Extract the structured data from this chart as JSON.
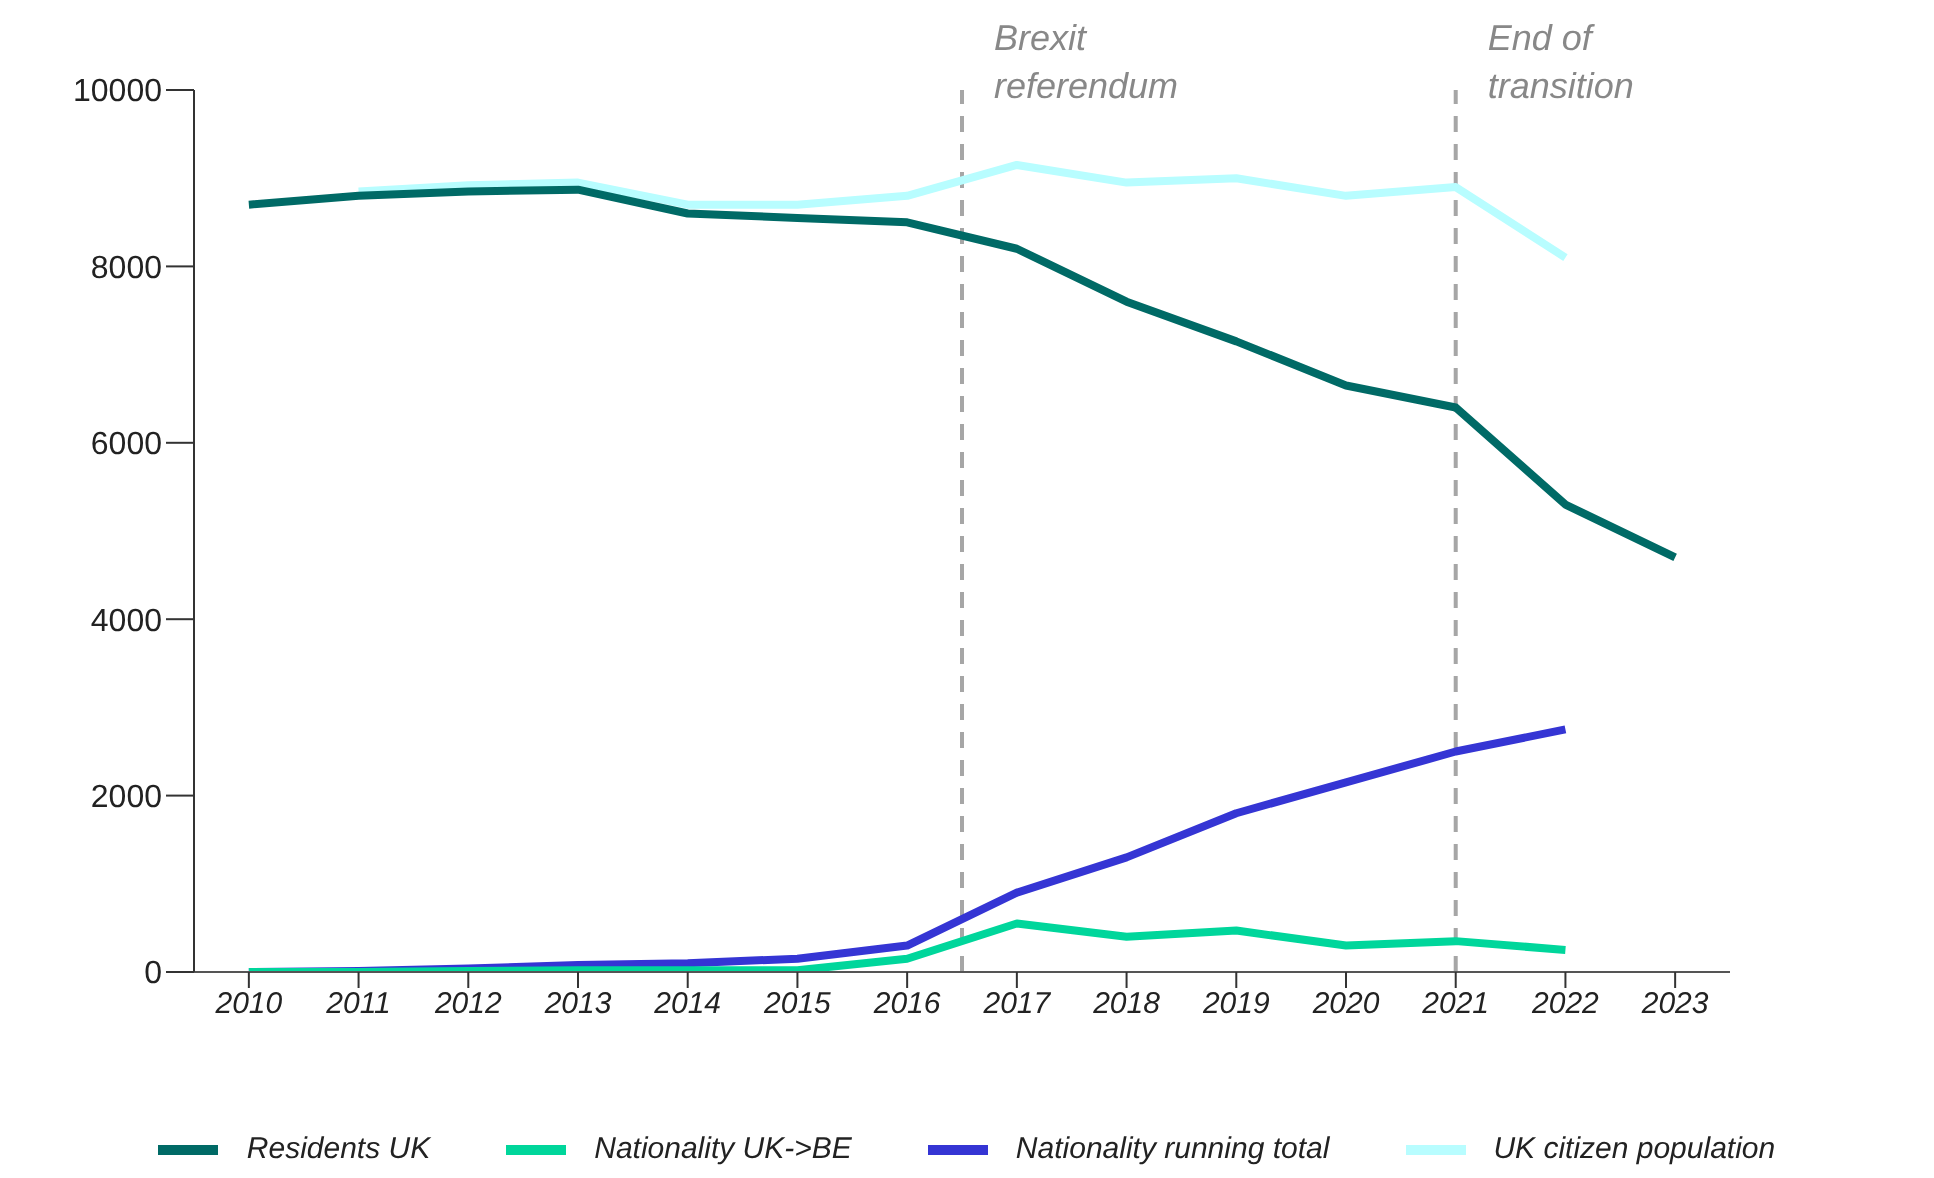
{
  "chart_data": {
    "type": "line",
    "x": [
      2010,
      2011,
      2012,
      2013,
      2014,
      2015,
      2016,
      2017,
      2018,
      2019,
      2020,
      2021,
      2022,
      2023
    ],
    "series": [
      {
        "name": "Residents UK",
        "color": "#006a66",
        "values": [
          8700,
          8800,
          8850,
          8870,
          8600,
          8550,
          8500,
          8200,
          7600,
          7150,
          6650,
          6400,
          5300,
          4700
        ]
      },
      {
        "name": "Nationality UK->BE",
        "color": "#00d69b",
        "values": [
          0,
          0,
          10,
          20,
          20,
          20,
          150,
          550,
          400,
          470,
          300,
          350,
          250,
          null
        ]
      },
      {
        "name": "Nationality running total",
        "color": "#3535d4",
        "values": [
          0,
          10,
          40,
          80,
          100,
          150,
          300,
          900,
          1300,
          1800,
          2150,
          2500,
          2750,
          null
        ]
      },
      {
        "name": "UK citizen population",
        "color": "#b8fdff",
        "values": [
          null,
          8850,
          8920,
          8950,
          8700,
          8700,
          8800,
          9150,
          8950,
          9000,
          8800,
          8900,
          8100,
          null
        ]
      }
    ],
    "xlim": [
      2009.5,
      2023.5
    ],
    "xticks": [
      2010,
      2011,
      2012,
      2013,
      2014,
      2015,
      2016,
      2017,
      2018,
      2019,
      2020,
      2021,
      2022,
      2023
    ],
    "ylim": [
      0,
      10000
    ],
    "yticks": [
      0,
      2000,
      4000,
      6000,
      8000,
      10000
    ],
    "ref_lines": [
      {
        "axis": "x",
        "value": 2016.5,
        "label": "Brexit\nreferendum",
        "color": "#a6a6a6",
        "line_style": "dashed"
      },
      {
        "axis": "x",
        "value": 2021,
        "label": "End of\ntransition",
        "color": "#a6a6a6",
        "line_style": "dashed"
      }
    ],
    "grid": false,
    "legend": "bottom",
    "marker": "none",
    "line_style": "solid"
  }
}
